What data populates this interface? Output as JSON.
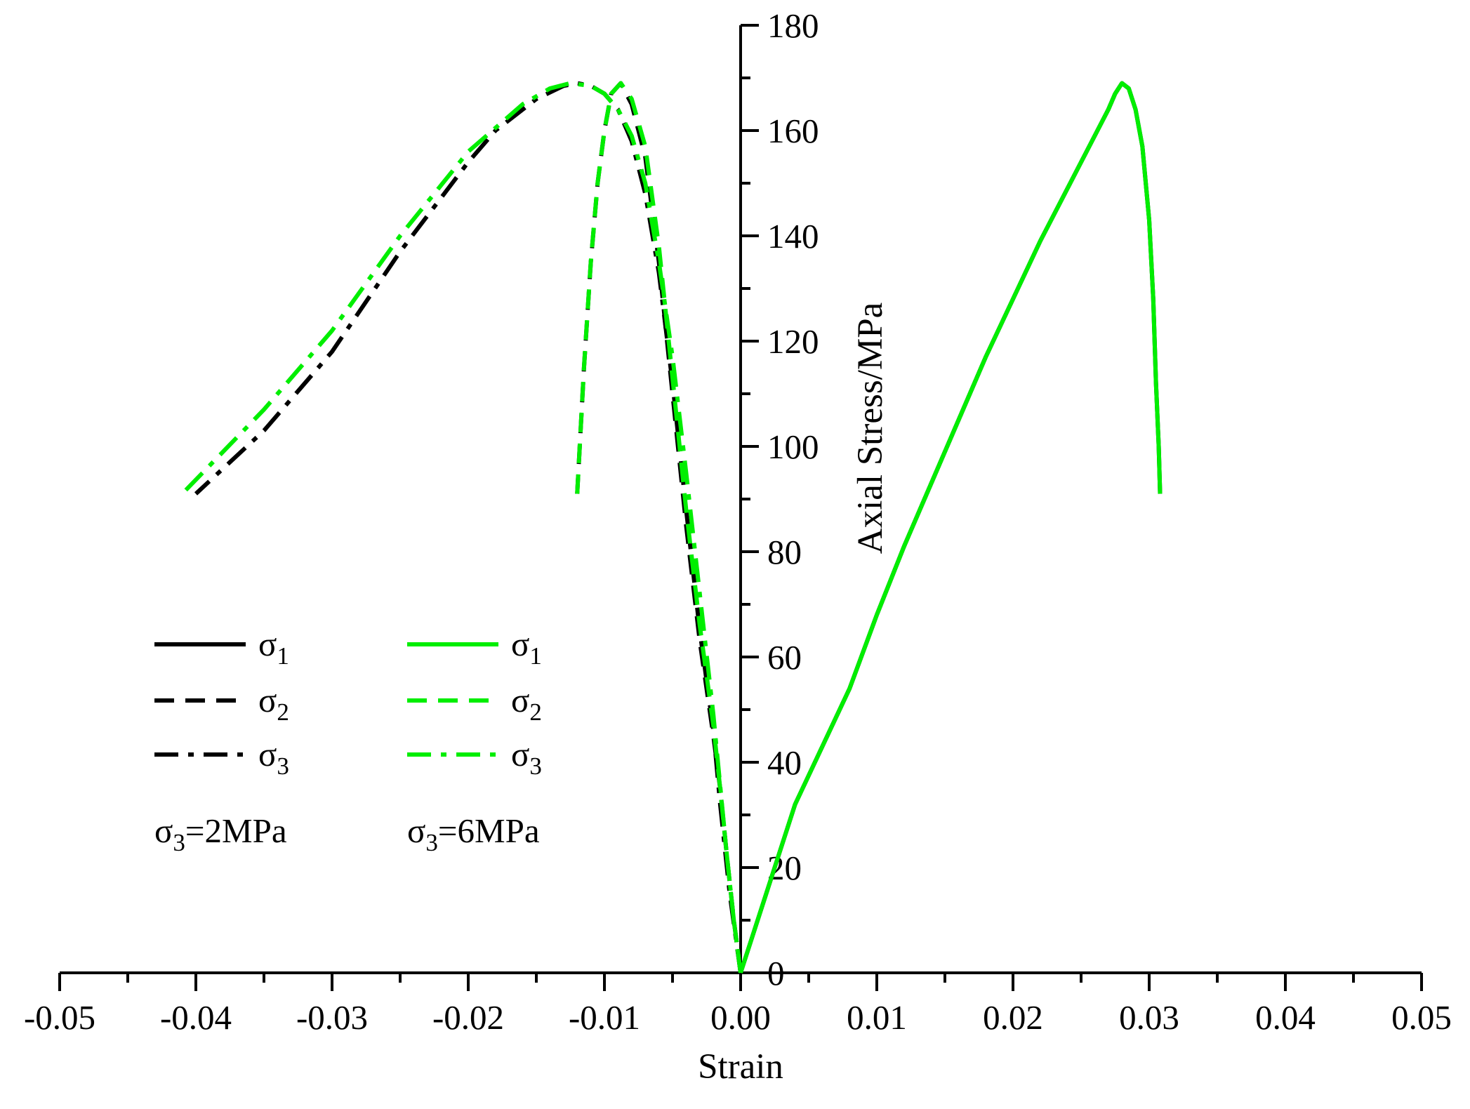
{
  "chart_data": {
    "type": "line",
    "xlabel": "Strain",
    "ylabel": "Axial Stress/MPa",
    "xlim": [
      -0.05,
      0.05
    ],
    "ylim": [
      0,
      180
    ],
    "x_ticks": [
      -0.05,
      -0.04,
      -0.03,
      -0.02,
      -0.01,
      0.0,
      0.01,
      0.02,
      0.03,
      0.04,
      0.05
    ],
    "x_tick_labels": [
      "-0.05",
      "-0.04",
      "-0.03",
      "-0.02",
      "-0.01",
      "0.00",
      "0.01",
      "0.02",
      "0.03",
      "0.04",
      "0.05"
    ],
    "y_ticks": [
      0,
      20,
      40,
      60,
      80,
      100,
      120,
      140,
      160,
      180
    ],
    "y_tick_labels": [
      "0",
      "20",
      "40",
      "60",
      "80",
      "100",
      "120",
      "140",
      "160",
      "180"
    ],
    "grid": false,
    "legend_position": "bottom-left",
    "legend_groups": [
      {
        "caption": "σ3=2MPa",
        "caption_main": "σ",
        "caption_sub": "3",
        "caption_rest": "=2MPa",
        "color": "#000000"
      },
      {
        "caption": "σ3=6MPa",
        "caption_main": "σ",
        "caption_sub": "3",
        "caption_rest": "=6MPa",
        "color": "#00ee00"
      }
    ],
    "series": [
      {
        "name": "σ1",
        "name_main": "σ",
        "name_sub": "1",
        "group": "σ3=2MPa",
        "color": "#000000",
        "dash": "solid",
        "points": [
          [
            0,
            0
          ],
          [
            0.001,
            8
          ],
          [
            0.002,
            16
          ],
          [
            0.004,
            32
          ],
          [
            0.006,
            43
          ],
          [
            0.008,
            54
          ],
          [
            0.01,
            68
          ],
          [
            0.012,
            81
          ],
          [
            0.014,
            93
          ],
          [
            0.016,
            105
          ],
          [
            0.018,
            117
          ],
          [
            0.02,
            128
          ],
          [
            0.022,
            139
          ],
          [
            0.024,
            149
          ],
          [
            0.026,
            159
          ],
          [
            0.027,
            164
          ],
          [
            0.0275,
            167
          ],
          [
            0.028,
            169
          ],
          [
            0.0285,
            168
          ],
          [
            0.029,
            164
          ],
          [
            0.0295,
            157
          ],
          [
            0.03,
            143
          ],
          [
            0.0303,
            128
          ],
          [
            0.0305,
            112
          ],
          [
            0.0307,
            100
          ],
          [
            0.0308,
            91
          ]
        ]
      },
      {
        "name": "σ2",
        "name_main": "σ",
        "name_sub": "2",
        "group": "σ3=2MPa",
        "color": "#000000",
        "dash": "dash",
        "points": [
          [
            0,
            0
          ],
          [
            -0.0005,
            10
          ],
          [
            -0.001,
            22
          ],
          [
            -0.0015,
            35
          ],
          [
            -0.002,
            45
          ],
          [
            -0.003,
            63
          ],
          [
            -0.004,
            85
          ],
          [
            -0.005,
            110
          ],
          [
            -0.006,
            135
          ],
          [
            -0.007,
            155
          ],
          [
            -0.008,
            165
          ],
          [
            -0.0088,
            169
          ],
          [
            -0.0095,
            167
          ],
          [
            -0.01,
            160
          ],
          [
            -0.0105,
            150
          ],
          [
            -0.011,
            135
          ],
          [
            -0.0115,
            115
          ],
          [
            -0.012,
            91
          ]
        ]
      },
      {
        "name": "σ3",
        "name_main": "σ",
        "name_sub": "3",
        "group": "σ3=2MPa",
        "color": "#000000",
        "dash": "dashdot",
        "points": [
          [
            0,
            0
          ],
          [
            -0.0008,
            15
          ],
          [
            -0.0015,
            32
          ],
          [
            -0.002,
            46
          ],
          [
            -0.003,
            65
          ],
          [
            -0.004,
            88
          ],
          [
            -0.005,
            112
          ],
          [
            -0.006,
            133
          ],
          [
            -0.007,
            148
          ],
          [
            -0.008,
            158
          ],
          [
            -0.009,
            164
          ],
          [
            -0.01,
            167
          ],
          [
            -0.011,
            168.5
          ],
          [
            -0.012,
            169
          ],
          [
            -0.013,
            168.5
          ],
          [
            -0.015,
            166
          ],
          [
            -0.018,
            160
          ],
          [
            -0.02,
            154
          ],
          [
            -0.025,
            137
          ],
          [
            -0.03,
            118
          ],
          [
            -0.035,
            103
          ],
          [
            -0.04,
            91
          ]
        ]
      },
      {
        "name": "σ1",
        "name_main": "σ",
        "name_sub": "1",
        "group": "σ3=6MPa",
        "color": "#00ee00",
        "dash": "solid",
        "points": [
          [
            0,
            0
          ],
          [
            0.001,
            8
          ],
          [
            0.002,
            16
          ],
          [
            0.004,
            32
          ],
          [
            0.006,
            43
          ],
          [
            0.008,
            54
          ],
          [
            0.01,
            68
          ],
          [
            0.012,
            81
          ],
          [
            0.014,
            93
          ],
          [
            0.016,
            105
          ],
          [
            0.018,
            117
          ],
          [
            0.02,
            128
          ],
          [
            0.022,
            139
          ],
          [
            0.024,
            149
          ],
          [
            0.026,
            159
          ],
          [
            0.027,
            164
          ],
          [
            0.0275,
            167
          ],
          [
            0.028,
            169
          ],
          [
            0.0285,
            168
          ],
          [
            0.029,
            164
          ],
          [
            0.0295,
            157
          ],
          [
            0.03,
            143
          ],
          [
            0.0303,
            128
          ],
          [
            0.0305,
            112
          ],
          [
            0.0307,
            100
          ],
          [
            0.0308,
            91
          ]
        ]
      },
      {
        "name": "σ2",
        "name_main": "σ",
        "name_sub": "2",
        "group": "σ3=6MPa",
        "color": "#00ee00",
        "dash": "dash",
        "points": [
          [
            0,
            0
          ],
          [
            -0.0005,
            10
          ],
          [
            -0.001,
            22
          ],
          [
            -0.0015,
            35
          ],
          [
            -0.002,
            47
          ],
          [
            -0.003,
            66
          ],
          [
            -0.004,
            88
          ],
          [
            -0.005,
            113
          ],
          [
            -0.006,
            138
          ],
          [
            -0.007,
            157
          ],
          [
            -0.008,
            166
          ],
          [
            -0.0088,
            169
          ],
          [
            -0.0095,
            167
          ],
          [
            -0.01,
            160
          ],
          [
            -0.0105,
            150
          ],
          [
            -0.011,
            135
          ],
          [
            -0.0115,
            115
          ],
          [
            -0.012,
            91
          ]
        ]
      },
      {
        "name": "σ3",
        "name_main": "σ",
        "name_sub": "3",
        "group": "σ3=6MPa",
        "color": "#00ee00",
        "dash": "dashdot",
        "points": [
          [
            0,
            0
          ],
          [
            -0.0005,
            10
          ],
          [
            -0.001,
            22
          ],
          [
            -0.002,
            49
          ],
          [
            -0.003,
            72
          ],
          [
            -0.004,
            95
          ],
          [
            -0.005,
            117
          ],
          [
            -0.006,
            135
          ],
          [
            -0.007,
            150
          ],
          [
            -0.008,
            159
          ],
          [
            -0.009,
            164
          ],
          [
            -0.01,
            167
          ],
          [
            -0.011,
            168.5
          ],
          [
            -0.0125,
            169
          ],
          [
            -0.014,
            168
          ],
          [
            -0.016,
            165
          ],
          [
            -0.02,
            156
          ],
          [
            -0.025,
            140
          ],
          [
            -0.03,
            122
          ],
          [
            -0.035,
            107
          ],
          [
            -0.041,
            91
          ]
        ]
      }
    ]
  }
}
